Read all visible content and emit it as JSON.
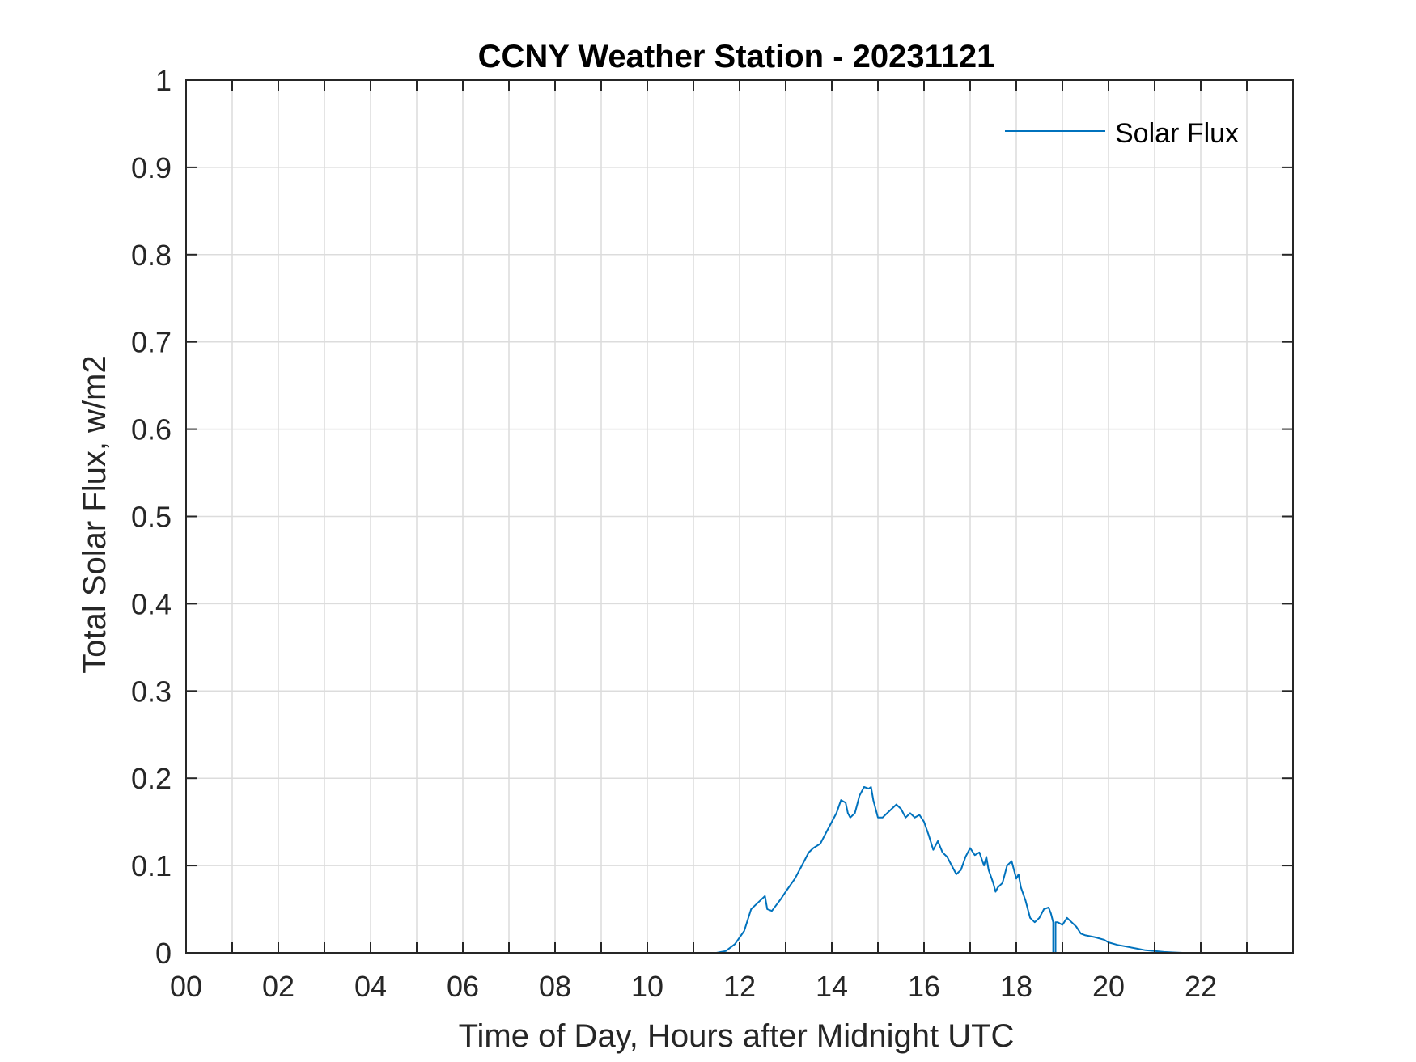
{
  "chart_data": {
    "type": "line",
    "title": "CCNY Weather Station - 20231121",
    "xlabel": "Time of Day, Hours after Midnight UTC",
    "ylabel": "Total Solar Flux, w/m2",
    "xlim": [
      0,
      24
    ],
    "ylim": [
      0,
      1
    ],
    "grid": true,
    "legend_position": "top-right",
    "x_ticks": [
      0,
      2,
      4,
      6,
      8,
      10,
      12,
      14,
      16,
      18,
      20,
      22
    ],
    "x_tick_labels": [
      "00",
      "02",
      "04",
      "06",
      "08",
      "10",
      "12",
      "14",
      "16",
      "18",
      "20",
      "22"
    ],
    "x_minor_ticks": [
      1,
      3,
      5,
      7,
      9,
      11,
      13,
      15,
      17,
      19,
      21,
      23
    ],
    "y_ticks": [
      0,
      0.1,
      0.2,
      0.3,
      0.4,
      0.5,
      0.6,
      0.7,
      0.8,
      0.9,
      1
    ],
    "y_tick_labels": [
      "0",
      "0.1",
      "0.2",
      "0.3",
      "0.4",
      "0.5",
      "0.6",
      "0.7",
      "0.8",
      "0.9",
      "1"
    ],
    "series": [
      {
        "name": "Solar Flux",
        "color": "#0072bd",
        "x": [
          0,
          11.5,
          11.7,
          11.9,
          12.1,
          12.25,
          12.35,
          12.45,
          12.55,
          12.6,
          12.7,
          12.8,
          12.9,
          13.0,
          13.2,
          13.35,
          13.5,
          13.6,
          13.75,
          13.9,
          14.0,
          14.1,
          14.2,
          14.3,
          14.35,
          14.4,
          14.5,
          14.55,
          14.6,
          14.7,
          14.8,
          14.85,
          14.9,
          15.0,
          15.1,
          15.2,
          15.3,
          15.4,
          15.5,
          15.6,
          15.7,
          15.8,
          15.9,
          16.0,
          16.1,
          16.2,
          16.3,
          16.4,
          16.5,
          16.6,
          16.7,
          16.8,
          16.9,
          17.0,
          17.1,
          17.2,
          17.3,
          17.35,
          17.4,
          17.5,
          17.55,
          17.6,
          17.7,
          17.75,
          17.8,
          17.9,
          18.0,
          18.05,
          18.1,
          18.2,
          18.3,
          18.4,
          18.5,
          18.6,
          18.7,
          18.75,
          18.8,
          18.8,
          18.85,
          18.85,
          18.9,
          19.0,
          19.1,
          19.2,
          19.3,
          19.4,
          19.5,
          19.7,
          19.9,
          20.0,
          20.2,
          20.4,
          20.6,
          20.8,
          21.0,
          21.2,
          21.4,
          21.6,
          22.0,
          24.0
        ],
        "values": [
          0,
          0,
          0.002,
          0.01,
          0.025,
          0.05,
          0.055,
          0.06,
          0.065,
          0.05,
          0.048,
          0.055,
          0.062,
          0.07,
          0.085,
          0.1,
          0.115,
          0.12,
          0.125,
          0.14,
          0.15,
          0.16,
          0.175,
          0.172,
          0.16,
          0.155,
          0.16,
          0.17,
          0.18,
          0.19,
          0.188,
          0.19,
          0.175,
          0.155,
          0.155,
          0.16,
          0.165,
          0.17,
          0.165,
          0.155,
          0.16,
          0.155,
          0.158,
          0.15,
          0.135,
          0.118,
          0.128,
          0.115,
          0.11,
          0.1,
          0.09,
          0.095,
          0.11,
          0.12,
          0.112,
          0.115,
          0.1,
          0.11,
          0.095,
          0.08,
          0.07,
          0.075,
          0.08,
          0.09,
          0.1,
          0.105,
          0.085,
          0.09,
          0.075,
          0.06,
          0.04,
          0.035,
          0.04,
          0.05,
          0.052,
          0.045,
          0.035,
          0,
          0,
          0.035,
          0.035,
          0.032,
          0.04,
          0.035,
          0.03,
          0.022,
          0.02,
          0.018,
          0.015,
          0.012,
          0.009,
          0.007,
          0.005,
          0.003,
          0.002,
          0.001,
          0.0005,
          0,
          0,
          0
        ]
      }
    ]
  }
}
